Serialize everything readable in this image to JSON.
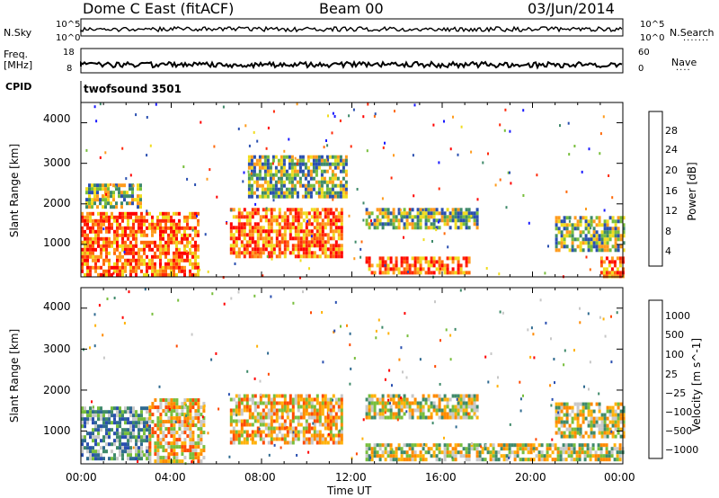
{
  "header": {
    "station": "Dome C East (fitACF)",
    "beam": "Beam 00",
    "date": "03/Jun/2014"
  },
  "strip_labels": {
    "nsky": "N.Sky",
    "freq_line1": "Freq.",
    "freq_line2": "[MHz]",
    "cpid": "CPID",
    "nsearch": "N.Search",
    "nave": "Nave",
    "nsky_ticks": [
      "10^5",
      "10^0"
    ],
    "nsearch_ticks": [
      "10^5",
      "10^0"
    ],
    "freq_ticks": [
      "18",
      "8"
    ],
    "nave_ticks": [
      "60",
      "0"
    ],
    "cpid_text": "twofsound 3501"
  },
  "colors": {
    "power_scale": [
      "#1a1aff",
      "#2a4fb0",
      "#3f8a6a",
      "#78be3c",
      "#f0dc1e",
      "#ff9c1e",
      "#ff6a0a",
      "#ff2a0a",
      "#ff0000"
    ],
    "velocity_scale": [
      "#2a4fb0",
      "#2f6a90",
      "#3f8a6a",
      "#78be3c",
      "#c8c8c8",
      "#ffb20a",
      "#ff8a00",
      "#ff4a00",
      "#ff0000"
    ]
  },
  "chart_data": [
    {
      "type": "heatmap",
      "title": "Power",
      "xlabel": "Time UT",
      "ylabel": "Slant Range [km]",
      "x_ticks": [
        "00:00",
        "04:00",
        "08:00",
        "12:00",
        "16:00",
        "20:00",
        "00:00"
      ],
      "y_ticks": [
        1000,
        2000,
        3000,
        4000
      ],
      "ylim": [
        200,
        4500
      ],
      "xlim_hours": [
        0,
        24
      ],
      "colorbar": {
        "label": "Power [dB]",
        "ticks": [
          4,
          8,
          12,
          16,
          20,
          24,
          28
        ],
        "range": [
          0,
          32
        ]
      },
      "echo_regions": [
        {
          "t_start": 0.0,
          "t_end": 5.2,
          "r_min": 280,
          "r_max": 1800,
          "level": "high"
        },
        {
          "t_start": 0.2,
          "t_end": 2.6,
          "r_min": 1900,
          "r_max": 2500,
          "level": "medium"
        },
        {
          "t_start": 6.6,
          "t_end": 11.6,
          "r_min": 700,
          "r_max": 1900,
          "level": "high"
        },
        {
          "t_start": 7.4,
          "t_end": 11.8,
          "r_min": 2200,
          "r_max": 3200,
          "level": "medium"
        },
        {
          "t_start": 12.6,
          "t_end": 17.6,
          "r_min": 1400,
          "r_max": 1900,
          "level": "medium"
        },
        {
          "t_start": 12.6,
          "t_end": 17.2,
          "r_min": 300,
          "r_max": 700,
          "level": "high"
        },
        {
          "t_start": 21.0,
          "t_end": 24.0,
          "r_min": 900,
          "r_max": 1700,
          "level": "medium"
        },
        {
          "t_start": 23.0,
          "t_end": 24.0,
          "r_min": 250,
          "r_max": 700,
          "level": "high"
        }
      ]
    },
    {
      "type": "heatmap",
      "title": "Velocity",
      "xlabel": "Time UT",
      "ylabel": "Slant Range [km]",
      "x_ticks": [
        "00:00",
        "04:00",
        "08:00",
        "12:00",
        "16:00",
        "20:00",
        "00:00"
      ],
      "y_ticks": [
        1000,
        2000,
        3000,
        4000
      ],
      "ylim": [
        200,
        4500
      ],
      "xlim_hours": [
        0,
        24
      ],
      "colorbar": {
        "label": "Velocity [m s^-1]",
        "ticks": [
          "1000",
          "500",
          "100",
          "25",
          "−25",
          "−100",
          "−500",
          "−1000"
        ]
      },
      "echo_regions": [
        {
          "t_start": 0.0,
          "t_end": 3.0,
          "r_min": 300,
          "r_max": 1600,
          "level": "positive"
        },
        {
          "t_start": 3.0,
          "t_end": 5.4,
          "r_min": 300,
          "r_max": 1800,
          "level": "negative"
        },
        {
          "t_start": 6.6,
          "t_end": 11.6,
          "r_min": 700,
          "r_max": 1900,
          "level": "negative"
        },
        {
          "t_start": 12.6,
          "t_end": 17.6,
          "r_min": 1300,
          "r_max": 1900,
          "level": "mixed"
        },
        {
          "t_start": 12.6,
          "t_end": 24.0,
          "r_min": 300,
          "r_max": 700,
          "level": "mixed"
        },
        {
          "t_start": 21.0,
          "t_end": 24.0,
          "r_min": 900,
          "r_max": 1700,
          "level": "mixed"
        }
      ]
    }
  ]
}
